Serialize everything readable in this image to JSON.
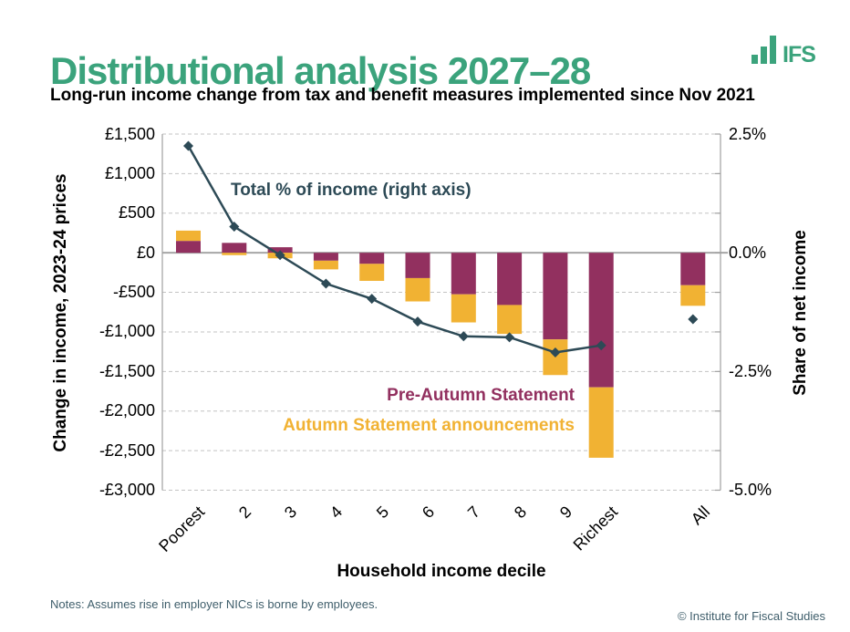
{
  "header": {
    "title": "Distributional analysis 2027–28",
    "subtitle": "Long-run income change from tax and benefit measures implemented since Nov 2021",
    "logo_text": "IFS"
  },
  "footer": {
    "notes": "Notes: Assumes rise in employer NICs is borne by employees.",
    "copyright": "© Institute for Fiscal Studies"
  },
  "colors": {
    "brand_green": "#3BA37C",
    "bar_maroon": "#92305F",
    "bar_amber": "#F1B233",
    "line_slate": "#2D4A56",
    "grid": "#C3C3C3",
    "zero_line": "#A6A6A6",
    "axis_line": "#A0A0A0",
    "footer_text": "#3F5E6B"
  },
  "chart_data": {
    "type": "combo: stacked bar (left axis, GBP) + line with diamond markers (right axis, %)",
    "title": "Distributional analysis 2027–28",
    "subtitle": "Long-run income change from tax and benefit measures implemented since Nov 2021",
    "categories": [
      "Poorest",
      "2",
      "3",
      "4",
      "5",
      "6",
      "7",
      "8",
      "9",
      "Richest",
      "All"
    ],
    "series": [
      {
        "name": "Pre-Autumn Statement",
        "type": "bar",
        "axis": "left",
        "color": "#92305F",
        "values": [
          150,
          125,
          70,
          -100,
          -140,
          -320,
          -525,
          -660,
          -1095,
          -1700,
          -410
        ]
      },
      {
        "name": "Autumn Statement announcements",
        "type": "bar",
        "axis": "left",
        "color": "#F1B233",
        "values": [
          130,
          -30,
          -70,
          -110,
          -215,
          -295,
          -355,
          -365,
          -450,
          -890,
          -260
        ]
      },
      {
        "name": "Total % of income (right axis)",
        "type": "line",
        "axis": "right",
        "color": "#2D4A56",
        "marker": "diamond",
        "note": "line connects Poorest through Richest; All is an isolated marker",
        "values": [
          2.25,
          0.55,
          -0.05,
          -0.65,
          -0.97,
          -1.45,
          -1.76,
          -1.78,
          -2.1,
          -1.95,
          -1.4
        ]
      }
    ],
    "left_axis": {
      "title": "Change in income, 2023-24 prices",
      "max": 1500,
      "min": -3000,
      "step": 500,
      "tick_labels": [
        "£1,500",
        "£1,000",
        "£500",
        "£0",
        "-£500",
        "-£1,000",
        "-£1,500",
        "-£2,000",
        "-£2,500",
        "-£3,000"
      ]
    },
    "right_axis": {
      "title": "Share of net income",
      "max": 2.5,
      "min": -5.0,
      "label_values": [
        2.5,
        0.0,
        -2.5,
        -5.0
      ],
      "tick_labels": [
        "2.5%",
        "0.0%",
        "-2.5%",
        "-5.0%"
      ]
    },
    "x_axis": {
      "title": "Household income decile",
      "gap_before_last_category": true
    },
    "grid": "horizontal dashed gridlines every £500, solid grey zero line",
    "legend_position": "text labels inside plot",
    "annotations": [
      {
        "id": "total",
        "text": "Total % of income (right axis)",
        "color": "#2D4A56"
      },
      {
        "id": "pre",
        "text": "Pre-Autumn Statement",
        "color": "#92305F"
      },
      {
        "id": "autumn",
        "text": "Autumn Statement announcements",
        "color": "#F1B233"
      }
    ]
  }
}
